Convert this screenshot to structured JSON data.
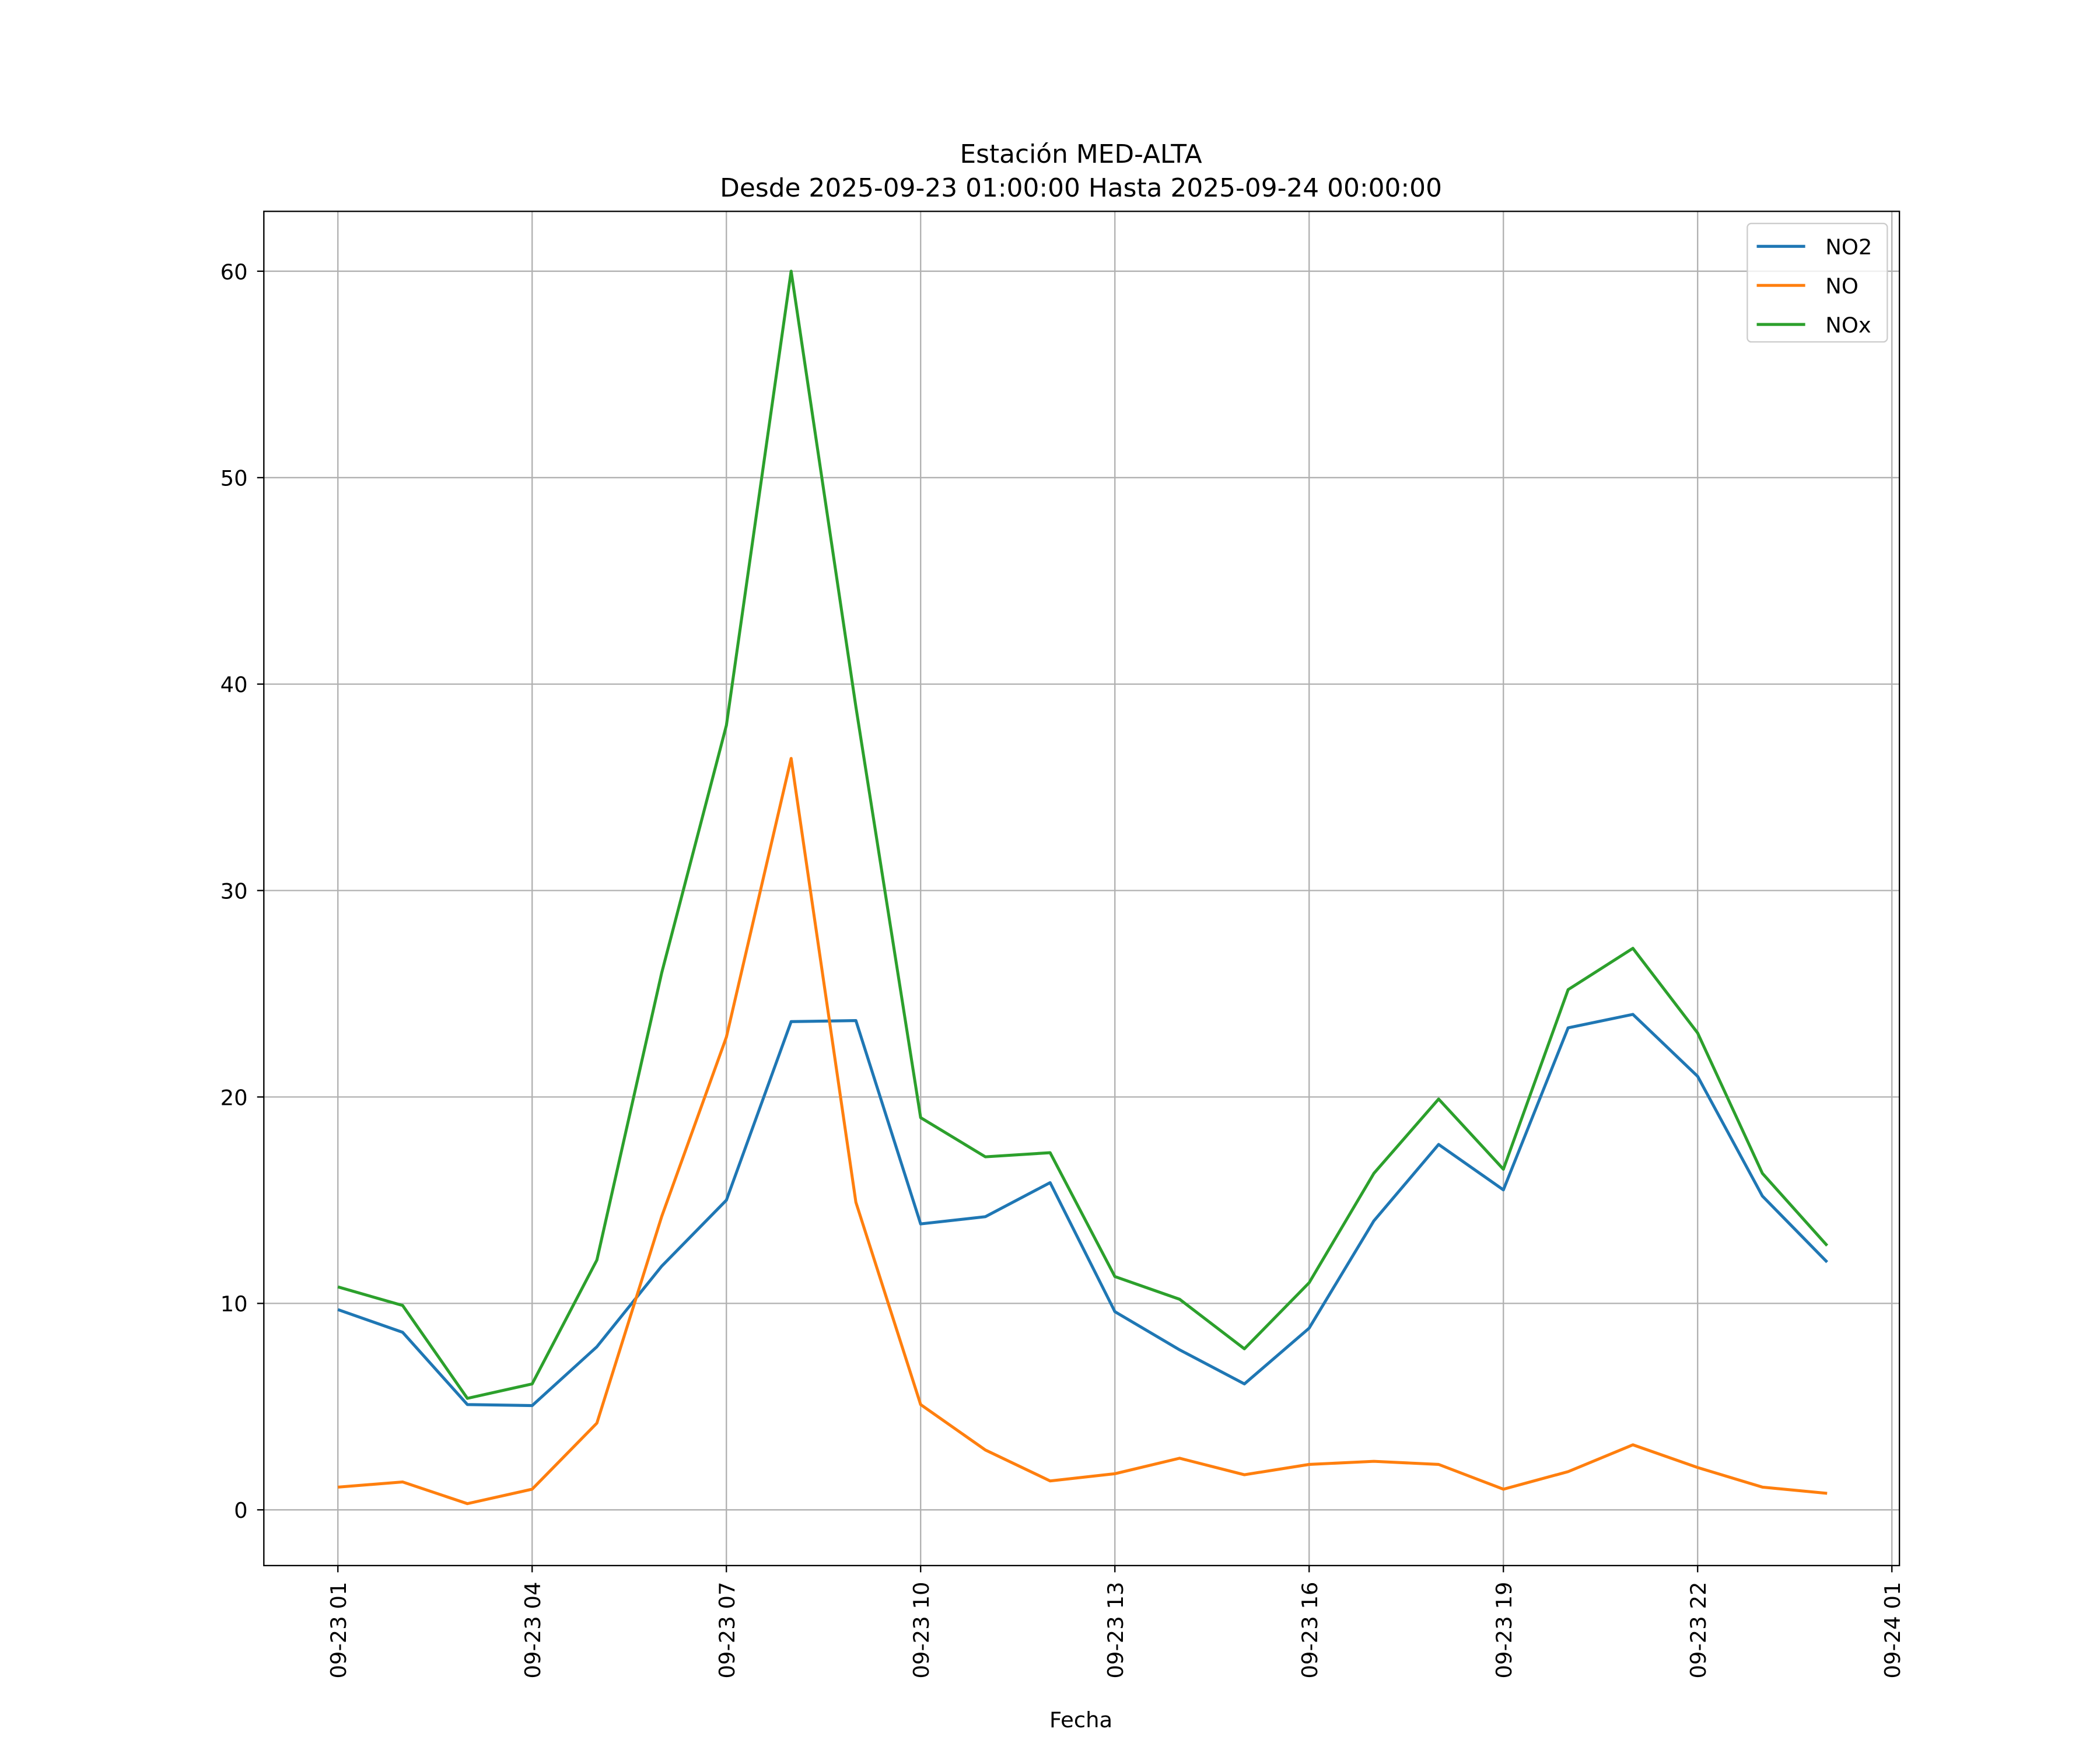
{
  "chart_data": {
    "type": "line",
    "title": "Estación MED-ALTA",
    "subtitle": "Desde 2025-09-23 01:00:00 Hasta 2025-09-24 00:00:00",
    "xlabel": "Fecha",
    "ylabel": "",
    "x": [
      "2025-09-23 01:00",
      "2025-09-23 02:00",
      "2025-09-23 03:00",
      "2025-09-23 04:00",
      "2025-09-23 05:00",
      "2025-09-23 06:00",
      "2025-09-23 07:00",
      "2025-09-23 08:00",
      "2025-09-23 09:00",
      "2025-09-23 10:00",
      "2025-09-23 11:00",
      "2025-09-23 12:00",
      "2025-09-23 13:00",
      "2025-09-23 14:00",
      "2025-09-23 15:00",
      "2025-09-23 16:00",
      "2025-09-23 17:00",
      "2025-09-23 18:00",
      "2025-09-23 19:00",
      "2025-09-23 20:00",
      "2025-09-23 21:00",
      "2025-09-23 22:00",
      "2025-09-23 23:00",
      "2025-09-24 00:00"
    ],
    "xticks": [
      "09-23 01",
      "09-23 04",
      "09-23 07",
      "09-23 10",
      "09-23 13",
      "09-23 16",
      "09-23 19",
      "09-23 22",
      "09-24 01"
    ],
    "xlim": [
      "2025-09-22 23:52",
      "2025-09-24 01:06"
    ],
    "yticks": [
      0,
      10,
      20,
      30,
      40,
      50,
      60
    ],
    "ylim": [
      -2.7,
      62.9
    ],
    "grid": true,
    "legend": "top-right",
    "series": [
      {
        "name": "NO2",
        "color": "#1f77b4",
        "values": [
          9.7,
          8.6,
          5.1,
          5.05,
          7.9,
          11.8,
          15.0,
          23.65,
          23.7,
          13.85,
          14.2,
          15.85,
          9.6,
          7.75,
          6.1,
          8.8,
          14.0,
          17.7,
          15.5,
          23.35,
          24.0,
          21.0,
          15.2,
          12.0
        ]
      },
      {
        "name": "NO",
        "color": "#ff7f0e",
        "values": [
          1.1,
          1.35,
          0.3,
          1.0,
          4.2,
          14.2,
          22.9,
          36.4,
          14.9,
          5.1,
          2.9,
          1.4,
          1.75,
          2.5,
          1.7,
          2.2,
          2.35,
          2.2,
          1.0,
          1.85,
          3.15,
          2.05,
          1.1,
          0.8
        ]
      },
      {
        "name": "NOx",
        "color": "#2ca02c",
        "values": [
          10.8,
          9.9,
          5.4,
          6.1,
          12.1,
          26.0,
          38.0,
          60.0,
          38.9,
          19.0,
          17.1,
          17.3,
          11.3,
          10.2,
          7.8,
          11.0,
          16.3,
          19.9,
          16.5,
          25.2,
          27.2,
          23.1,
          16.3,
          12.8
        ]
      }
    ]
  }
}
